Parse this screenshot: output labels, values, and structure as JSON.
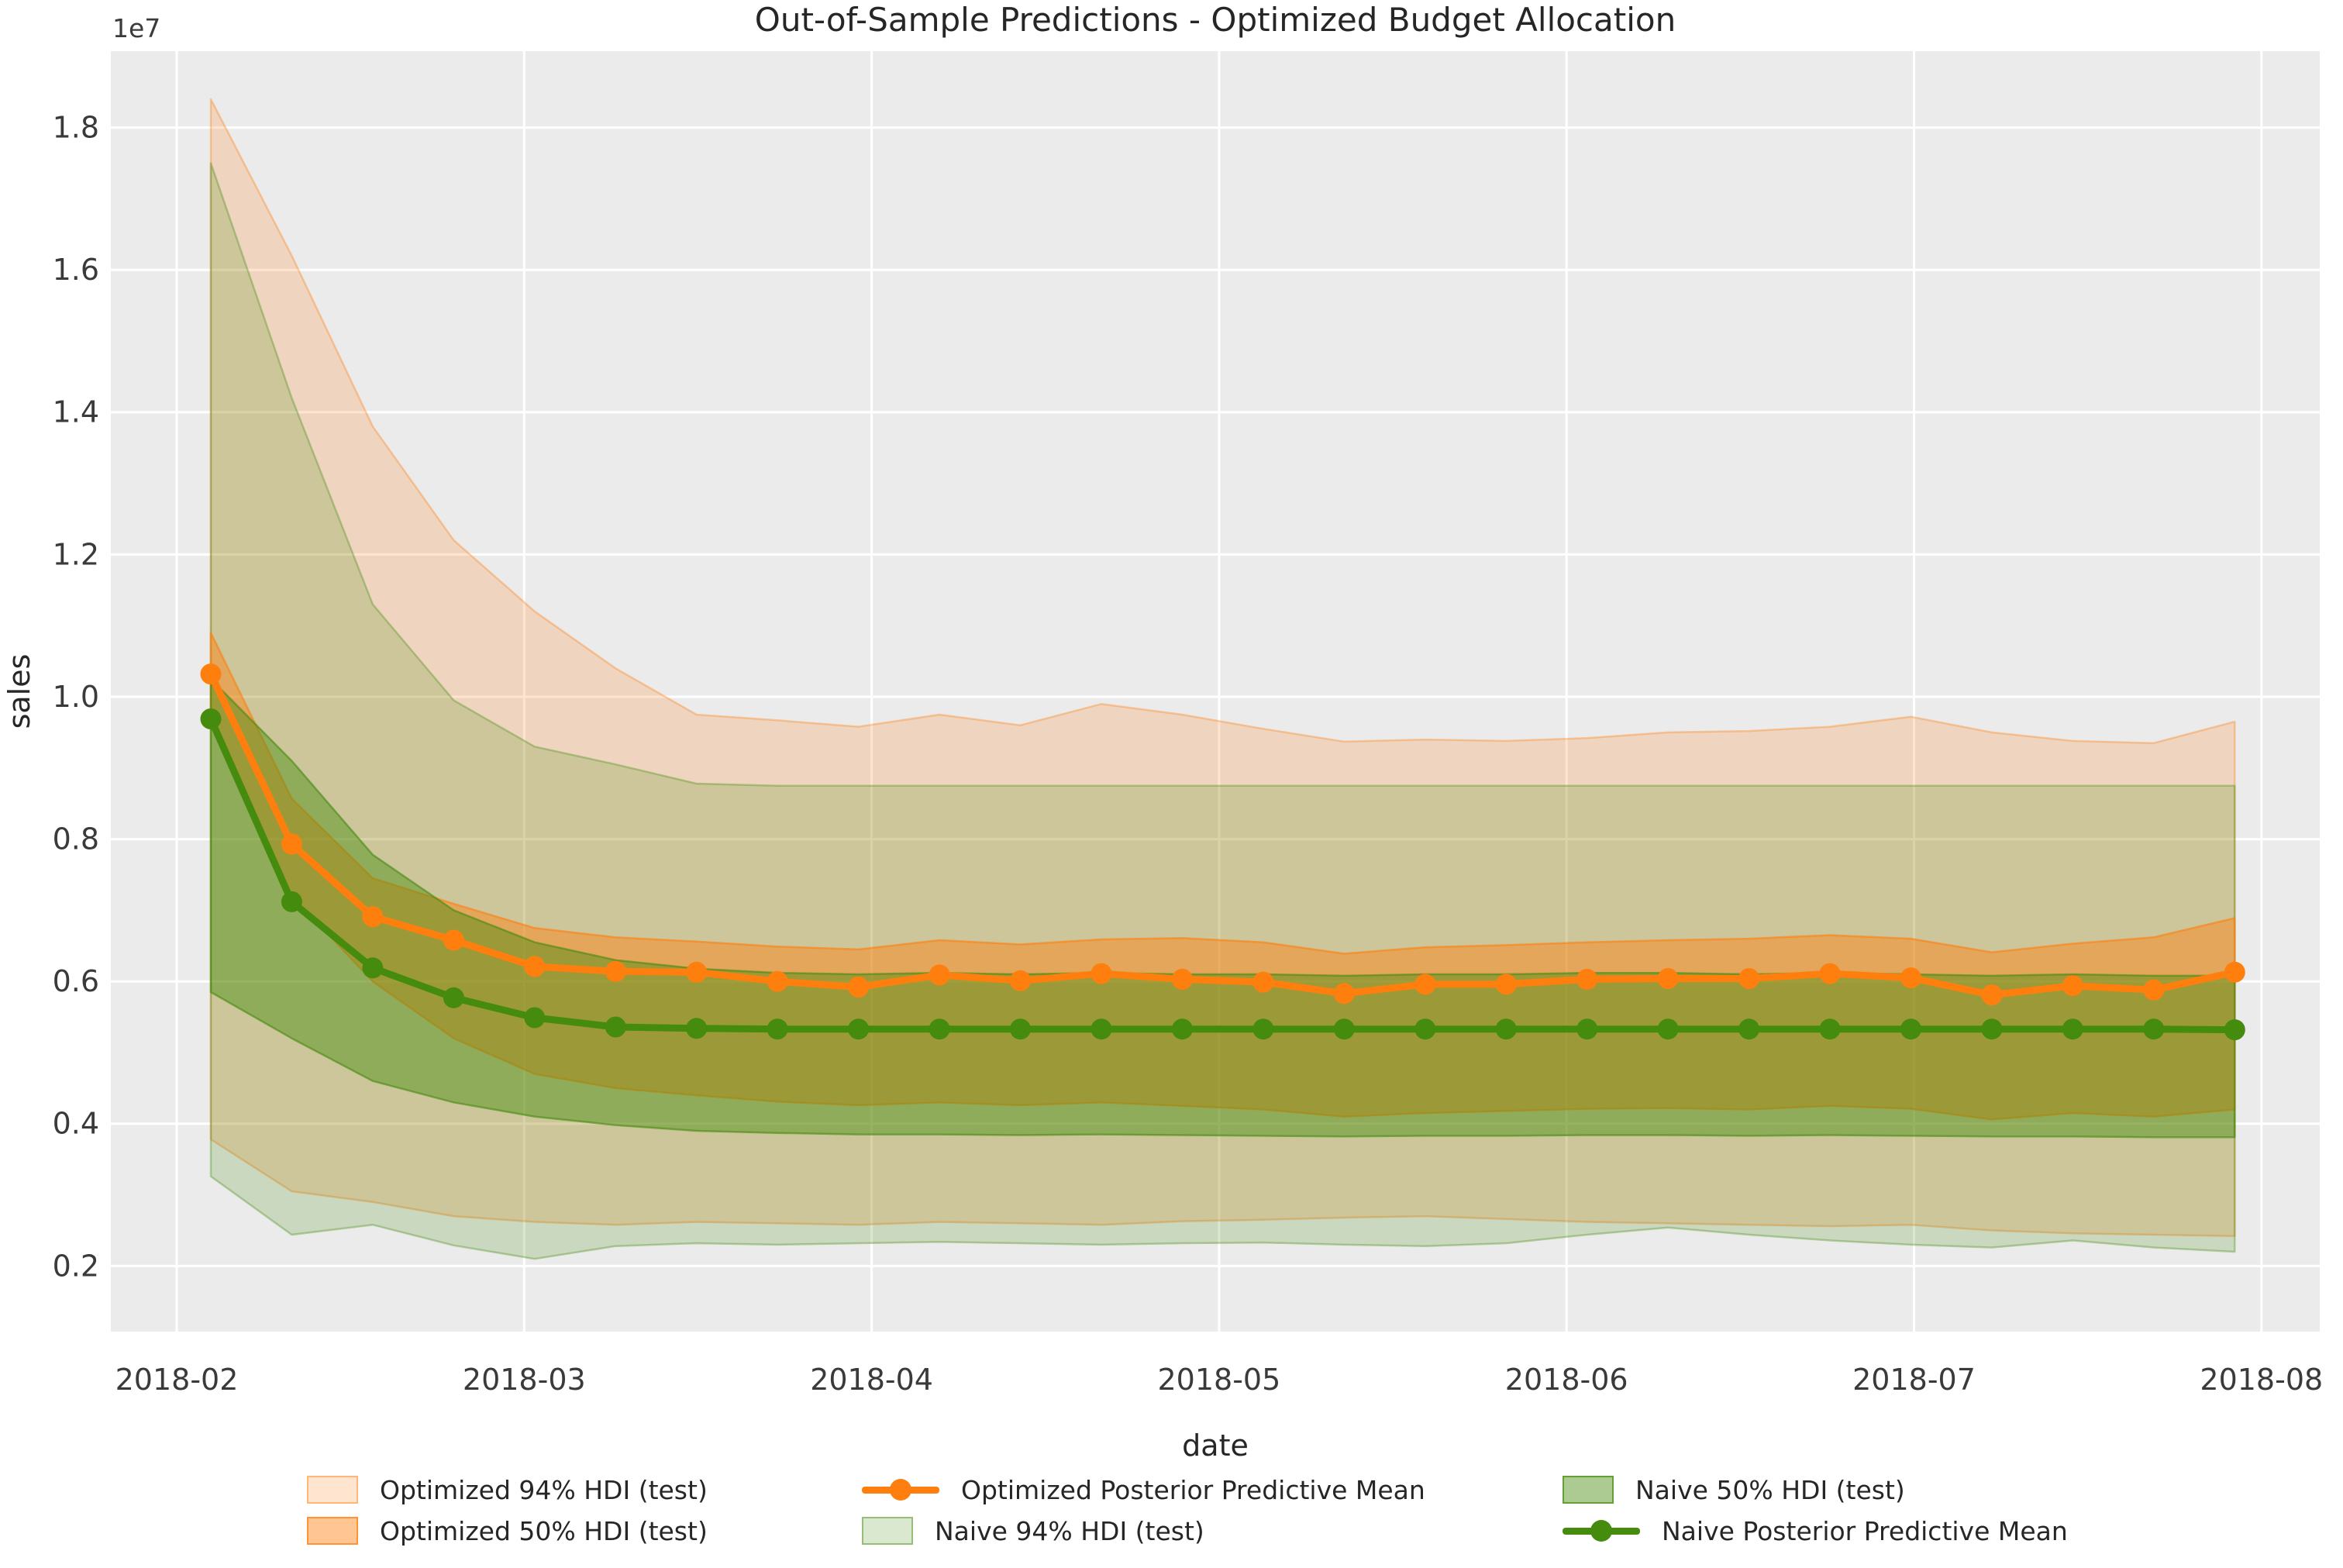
{
  "title": "Out-of-Sample Predictions - Optimized Budget Allocation",
  "axes": {
    "xlabel": "date",
    "ylabel": "sales",
    "y_offset_label": "1e7"
  },
  "colors": {
    "optimized": "#ff7f0e",
    "naive": "#458b0e",
    "plot_background": "#ebebeb",
    "grid": "#ffffff",
    "tick_text": "#3a3a3a",
    "title_text": "#262626"
  },
  "legend": {
    "items": [
      {
        "label": "Optimized 94% HDI (test)",
        "kind": "swatch",
        "series": "optimized-94-hdi"
      },
      {
        "label": "Optimized 50% HDI (test)",
        "kind": "swatch",
        "series": "optimized-50-hdi"
      },
      {
        "label": "Optimized Posterior Predictive Mean",
        "kind": "line",
        "series": "optimized-mean"
      },
      {
        "label": "Naive 94% HDI (test)",
        "kind": "swatch",
        "series": "naive-94-hdi"
      },
      {
        "label": "Naive 50% HDI (test)",
        "kind": "swatch",
        "series": "naive-50-hdi"
      },
      {
        "label": "Naive Posterior Predictive Mean",
        "kind": "line",
        "series": "naive-mean"
      }
    ]
  },
  "chart_data": {
    "type": "line",
    "title": "Out-of-Sample Predictions - Optimized Budget Allocation",
    "xlabel": "date",
    "ylabel": "sales",
    "y_scale_offset": "1e7",
    "x_tick_labels": [
      "2018-02",
      "2018-03",
      "2018-04",
      "2018-05",
      "2018-06",
      "2018-07",
      "2018-08"
    ],
    "y_tick_values": [
      0.2,
      0.4,
      0.6,
      0.8,
      1.0,
      1.2,
      1.4,
      1.6,
      1.8
    ],
    "ylim": [
      0.108,
      1.907
    ],
    "grid": true,
    "legend_position": "below",
    "n_points": 26,
    "x_cadence": "weekly from early 2018-02 to late 2018-07",
    "series": [
      {
        "name": "Optimized Posterior Predictive Mean",
        "color": "#ff7f0e",
        "values": [
          1.032,
          0.793,
          0.691,
          0.658,
          0.621,
          0.614,
          0.613,
          0.6,
          0.592,
          0.609,
          0.601,
          0.611,
          0.603,
          0.599,
          0.583,
          0.596,
          0.596,
          0.603,
          0.604,
          0.604,
          0.611,
          0.605,
          0.581,
          0.594,
          0.588,
          0.613
        ]
      },
      {
        "name": "Naive Posterior Predictive Mean",
        "color": "#458b0e",
        "values": [
          0.969,
          0.712,
          0.619,
          0.577,
          0.549,
          0.536,
          0.534,
          0.533,
          0.533,
          0.533,
          0.533,
          0.533,
          0.533,
          0.533,
          0.533,
          0.533,
          0.533,
          0.533,
          0.533,
          0.533,
          0.533,
          0.533,
          0.533,
          0.533,
          0.533,
          0.532
        ]
      }
    ],
    "bands": [
      {
        "name": "Optimized 94% HDI (test)",
        "color": "#ff7f0e",
        "alpha": 0.2,
        "upper": [
          1.84,
          1.62,
          1.38,
          1.22,
          1.12,
          1.04,
          0.975,
          0.967,
          0.958,
          0.975,
          0.96,
          0.99,
          0.975,
          0.955,
          0.937,
          0.94,
          0.938,
          0.942,
          0.95,
          0.952,
          0.958,
          0.972,
          0.95,
          0.938,
          0.935,
          0.965
        ],
        "lower": [
          0.378,
          0.305,
          0.29,
          0.27,
          0.262,
          0.258,
          0.262,
          0.26,
          0.258,
          0.262,
          0.26,
          0.258,
          0.263,
          0.265,
          0.268,
          0.27,
          0.266,
          0.262,
          0.26,
          0.258,
          0.256,
          0.258,
          0.25,
          0.246,
          0.244,
          0.242
        ]
      },
      {
        "name": "Naive 94% HDI (test)",
        "color": "#458b0e",
        "alpha": 0.2,
        "upper": [
          1.75,
          1.42,
          1.13,
          0.995,
          0.93,
          0.905,
          0.878,
          0.875,
          0.875,
          0.875,
          0.875,
          0.875,
          0.875,
          0.875,
          0.875,
          0.875,
          0.875,
          0.875,
          0.875,
          0.875,
          0.875,
          0.875,
          0.875,
          0.875,
          0.875,
          0.875
        ],
        "lower": [
          0.326,
          0.244,
          0.258,
          0.229,
          0.21,
          0.228,
          0.232,
          0.23,
          0.232,
          0.234,
          0.232,
          0.23,
          0.232,
          0.233,
          0.23,
          0.228,
          0.232,
          0.244,
          0.254,
          0.244,
          0.236,
          0.23,
          0.226,
          0.236,
          0.226,
          0.22
        ]
      },
      {
        "name": "Optimized 50% HDI (test)",
        "color": "#ff7f0e",
        "alpha": 0.45,
        "upper": [
          1.09,
          0.857,
          0.745,
          0.709,
          0.675,
          0.662,
          0.656,
          0.649,
          0.645,
          0.658,
          0.652,
          0.659,
          0.661,
          0.655,
          0.639,
          0.648,
          0.651,
          0.655,
          0.658,
          0.66,
          0.665,
          0.66,
          0.641,
          0.653,
          0.662,
          0.689
        ],
        "lower": [
          0.975,
          0.72,
          0.6,
          0.52,
          0.47,
          0.45,
          0.44,
          0.431,
          0.426,
          0.43,
          0.426,
          0.43,
          0.425,
          0.42,
          0.41,
          0.415,
          0.418,
          0.421,
          0.422,
          0.42,
          0.425,
          0.421,
          0.406,
          0.415,
          0.41,
          0.42
        ]
      },
      {
        "name": "Naive 50% HDI (test)",
        "color": "#458b0e",
        "alpha": 0.45,
        "upper": [
          1.025,
          0.91,
          0.778,
          0.7,
          0.655,
          0.63,
          0.618,
          0.612,
          0.61,
          0.612,
          0.61,
          0.612,
          0.61,
          0.61,
          0.608,
          0.61,
          0.61,
          0.612,
          0.612,
          0.61,
          0.612,
          0.61,
          0.608,
          0.61,
          0.608,
          0.608
        ],
        "lower": [
          0.585,
          0.52,
          0.46,
          0.43,
          0.41,
          0.398,
          0.39,
          0.387,
          0.385,
          0.385,
          0.384,
          0.385,
          0.384,
          0.383,
          0.382,
          0.383,
          0.383,
          0.384,
          0.384,
          0.383,
          0.384,
          0.383,
          0.382,
          0.382,
          0.381,
          0.381
        ]
      }
    ]
  }
}
